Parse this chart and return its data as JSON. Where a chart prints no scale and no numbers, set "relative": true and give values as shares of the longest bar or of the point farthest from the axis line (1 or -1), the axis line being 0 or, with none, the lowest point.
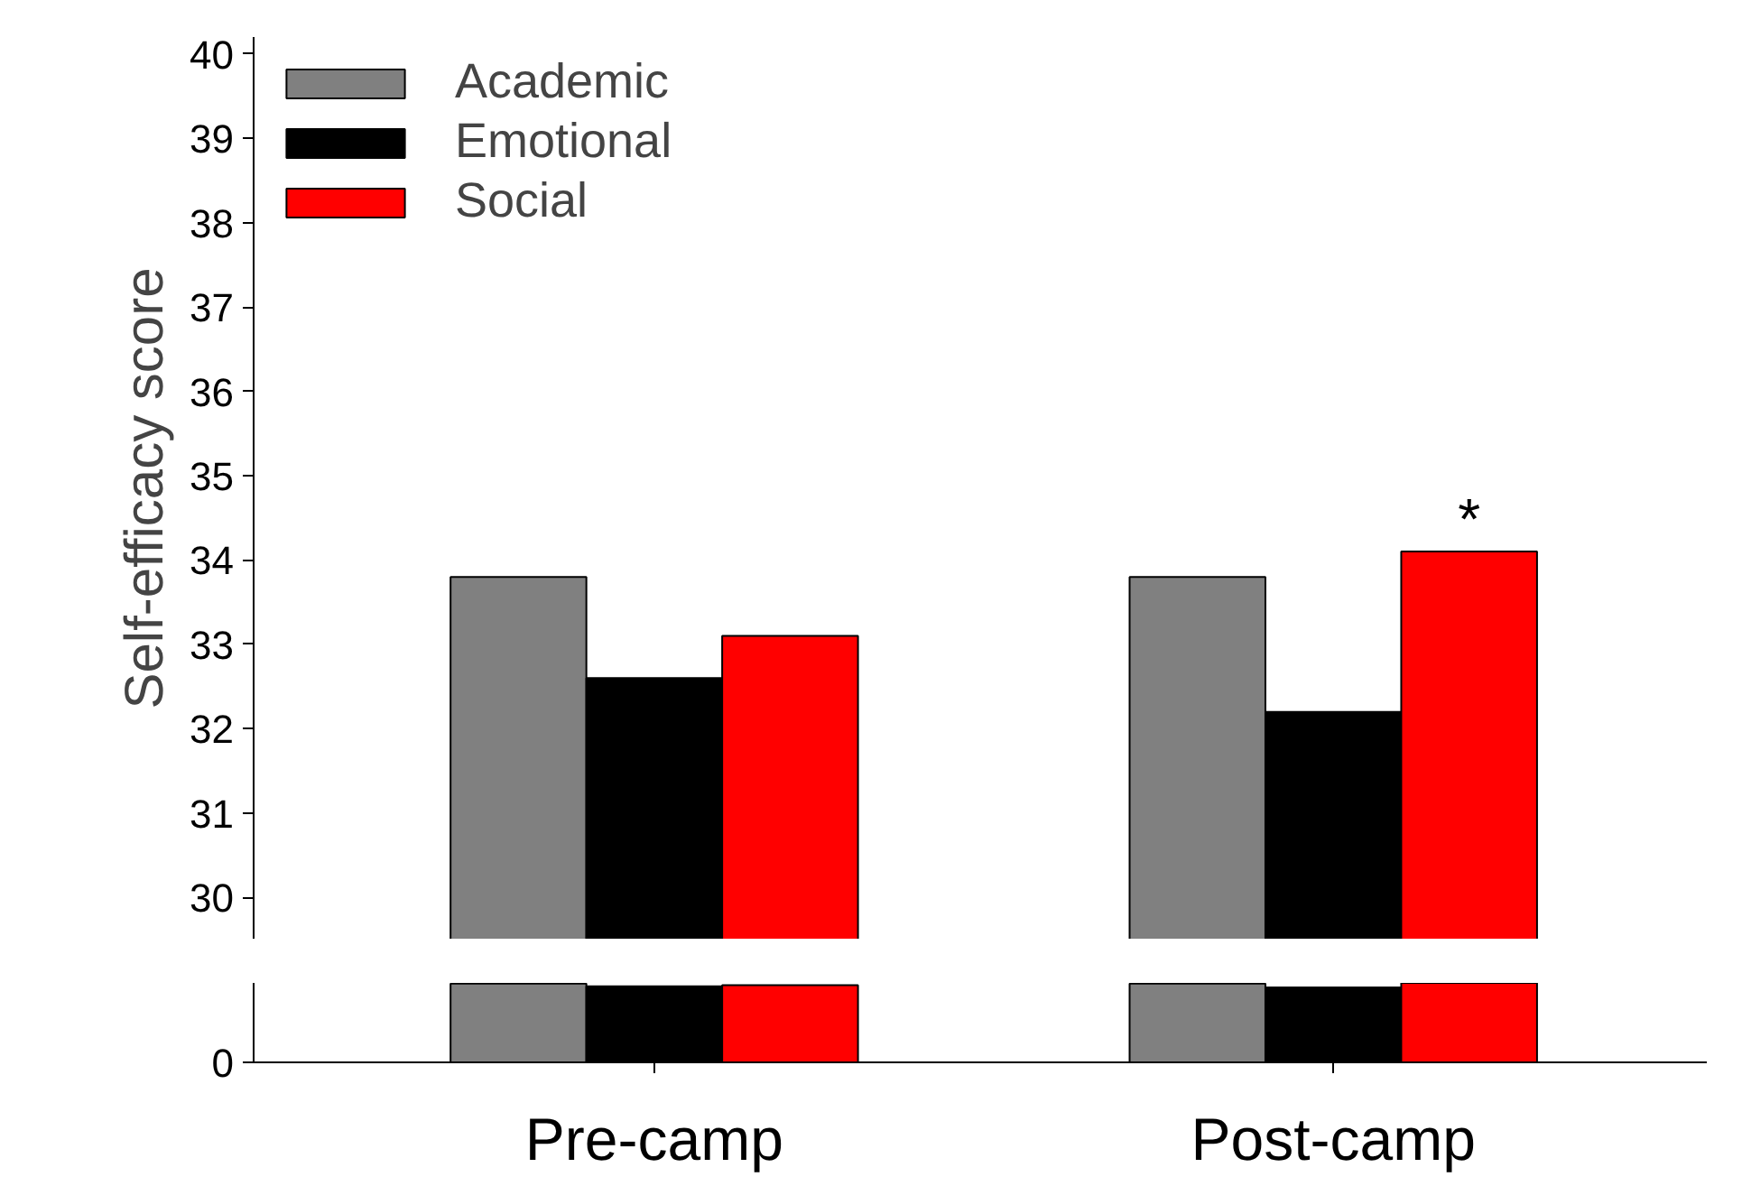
{
  "chart_data": [
    {
      "type": "bar",
      "ylabel": "Self-efficacy score",
      "series": [
        {
          "name": "Academic",
          "color": "#808080",
          "values": [
            33.8,
            33.8
          ]
        },
        {
          "name": "Emotional",
          "color": "#000000",
          "values": [
            32.6,
            32.2
          ]
        },
        {
          "name": "Social",
          "color": "#ff0000",
          "values": [
            33.1,
            34.1
          ]
        }
      ],
      "ylim": [
        29.5,
        40.2
      ],
      "yticks": [
        30,
        31,
        32,
        33,
        34,
        35,
        36,
        37,
        38,
        39,
        40
      ],
      "tick_labels": "y",
      "grid": false,
      "legend": "top left",
      "annotations": [
        "*"
      ]
    },
    {
      "type": "bar",
      "categories": [
        "Pre-camp",
        "Post-camp"
      ],
      "relative": true,
      "series": [
        {
          "color": "#808080",
          "values": [
            0.991,
            0.991
          ]
        },
        {
          "color": "#000000",
          "values": [
            0.956,
            0.944
          ]
        },
        {
          "color": "#ff0000",
          "values": [
            0.971,
            1
          ]
        }
      ],
      "grid": false,
      "annotations": [
        "0"
      ]
    }
  ]
}
